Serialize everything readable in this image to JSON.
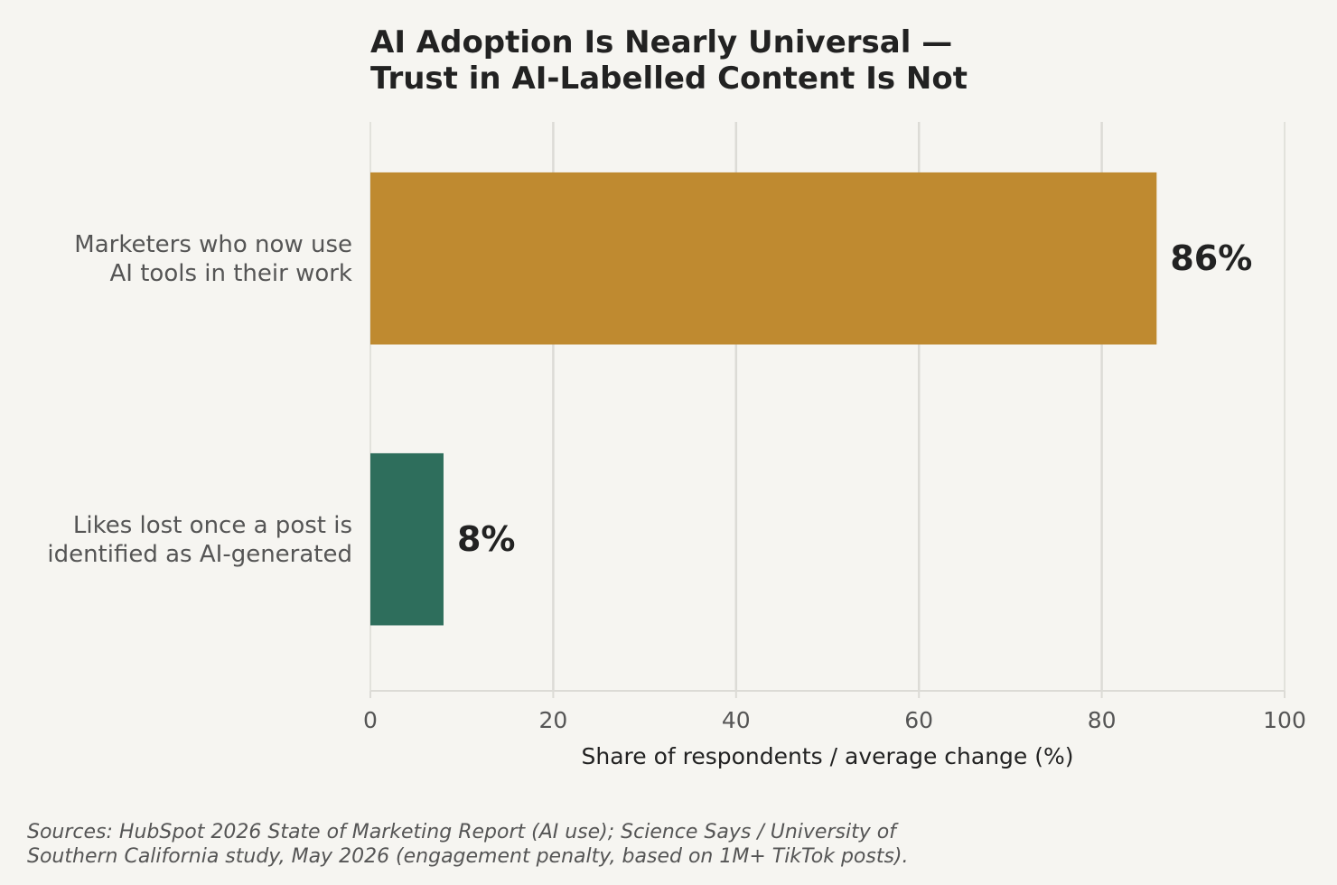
{
  "chart_data": {
    "type": "bar",
    "orientation": "horizontal",
    "title_lines": [
      "AI Adoption Is Nearly Universal —",
      "Trust in AI-Labelled Content Is Not"
    ],
    "categories": [
      {
        "label_lines": [
          "Marketers who now use",
          "AI tools in their work"
        ],
        "value": 86,
        "value_label": "86%",
        "color": "#bf8a30"
      },
      {
        "label_lines": [
          "Likes lost once a post is",
          "identified as AI-generated"
        ],
        "value": 8,
        "value_label": "8%",
        "color": "#2e6e5c"
      }
    ],
    "xlabel": "Share of respondents / average change (%)",
    "xlim": [
      0,
      100
    ],
    "xticks": [
      0,
      20,
      40,
      60,
      80,
      100
    ],
    "grid": "vertical",
    "source_lines": [
      "Sources: HubSpot 2026 State of Marketing Report (AI use); Science Says / University of",
      "Southern California study, May 2026 (engagement penalty, based on 1M+ TikTok posts)."
    ],
    "colors": {
      "background": "#f6f5f1",
      "grid": "#dcdbd6",
      "text_dark": "#222222",
      "text_muted": "#555555"
    }
  }
}
